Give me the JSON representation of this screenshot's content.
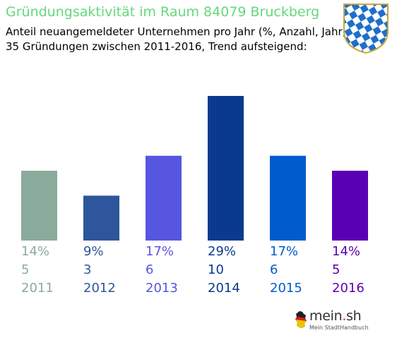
{
  "header": {
    "title": "Gründungsaktivität im Raum 84079 Bruckberg",
    "subtitle_line1": "Anteil neuangemeldeter Unternehmen pro Jahr (%, Anzahl, Jahr)",
    "subtitle_line2": "35 Gründungen zwischen 2011-2016, Trend aufsteigend:"
  },
  "logo": {
    "brand": "mein",
    "dot": ".",
    "tld": "sh",
    "tagline": "Mein StadtHandbuch"
  },
  "chart_data": {
    "type": "bar",
    "title": "Gründungsaktivität im Raum 84079 Bruckberg",
    "categories": [
      "2011",
      "2012",
      "2013",
      "2014",
      "2015",
      "2016"
    ],
    "values": [
      14,
      9,
      17,
      29,
      17,
      14
    ],
    "counts": [
      5,
      3,
      6,
      10,
      6,
      5
    ],
    "percent_labels": [
      "14%",
      "9%",
      "17%",
      "29%",
      "17%",
      "14%"
    ],
    "colors": [
      "#8aab9b",
      "#2d569c",
      "#5656e0",
      "#0a3a8f",
      "#005ccc",
      "#5a00b4"
    ],
    "ylim": [
      0,
      29
    ],
    "grid": false,
    "legend": "none"
  }
}
